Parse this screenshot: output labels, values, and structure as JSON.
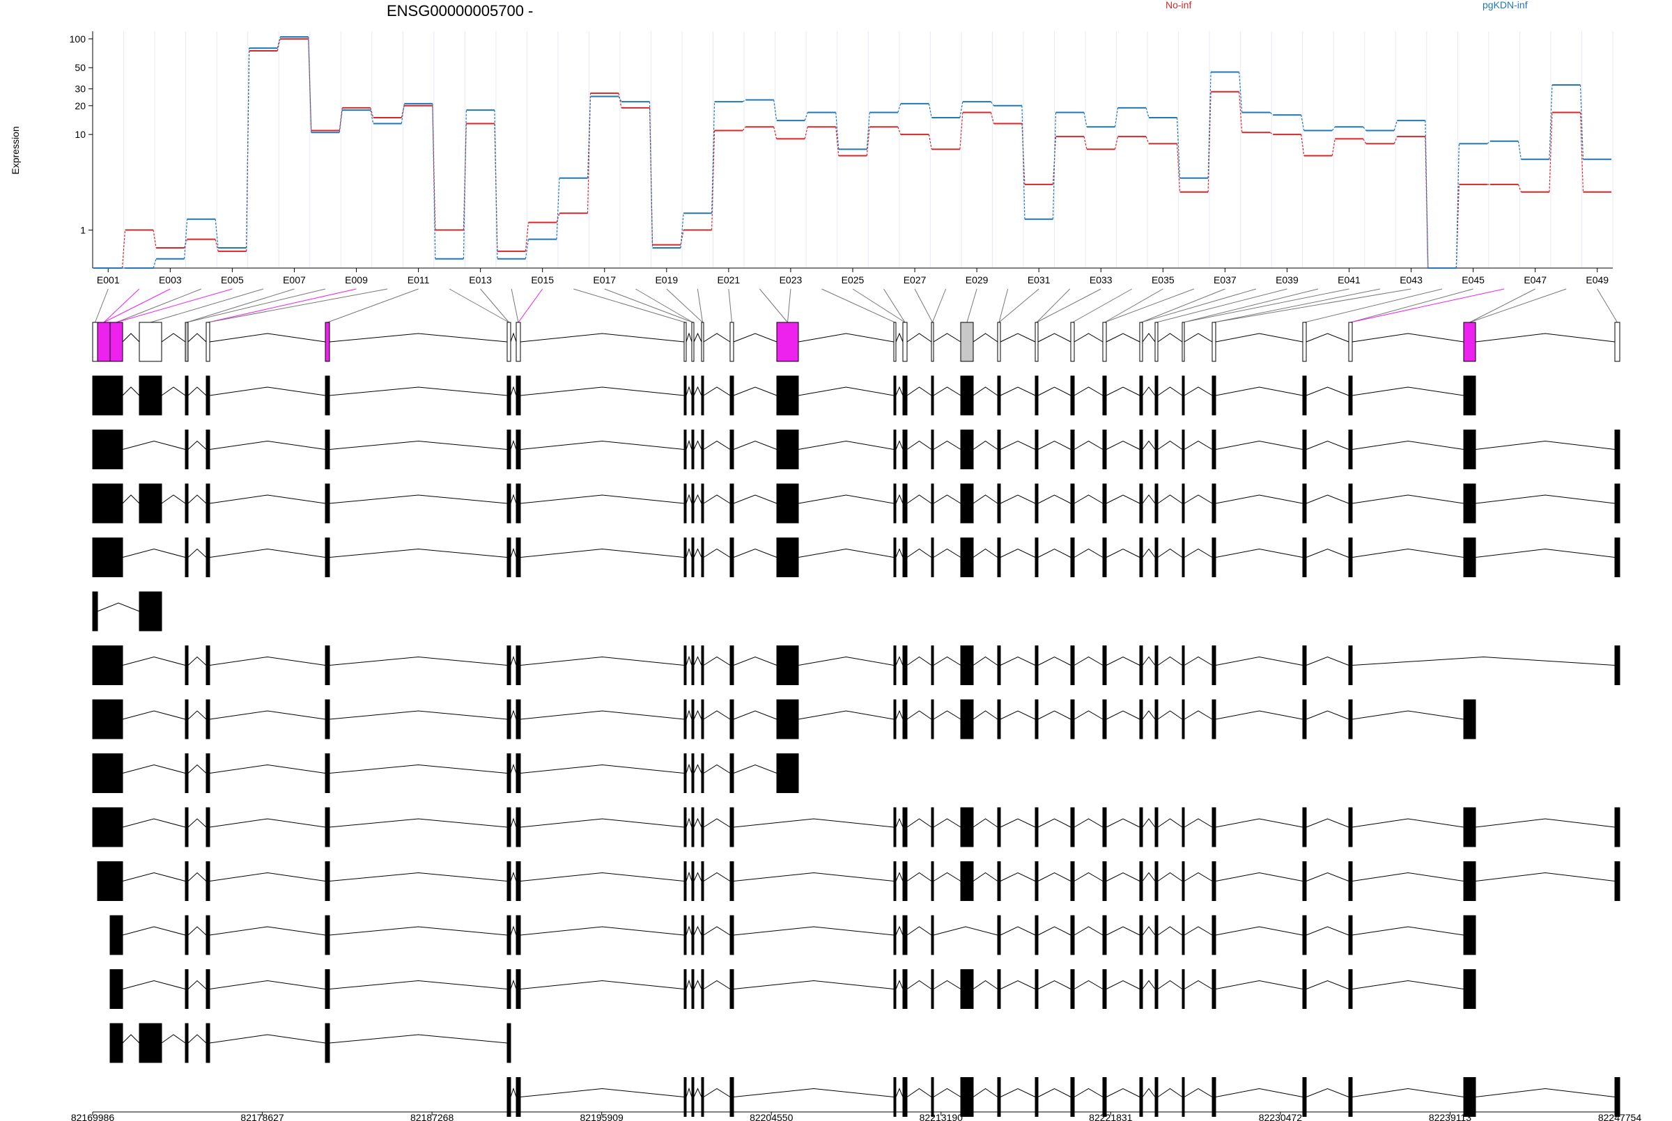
{
  "chart_data": {
    "type": "line",
    "title": "ENSG00000005700 -",
    "ylabel": "Expression",
    "yscale": "log",
    "yticks": [
      1,
      10,
      20,
      30,
      50,
      100
    ],
    "ylim": [
      0.4,
      120
    ],
    "grid": true,
    "legend_placement": "top-right",
    "colors": {
      "No-inf": "#d62728",
      "pgKDN-inf": "#1f77b4",
      "highlight": "#ee22ee",
      "other": "#c8c8c8"
    },
    "exon_labels": [
      "E001",
      "E003",
      "E005",
      "E007",
      "E009",
      "E011",
      "E013",
      "E015",
      "E017",
      "E019",
      "E021",
      "E023",
      "E025",
      "E027",
      "E029",
      "E031",
      "E033",
      "E035",
      "E037",
      "E039",
      "E041",
      "E043",
      "E045",
      "E047",
      "E049"
    ],
    "series": [
      {
        "name": "No-inf",
        "values": [
          0.4,
          1.0,
          0.65,
          0.8,
          0.6,
          75,
          100,
          11,
          19,
          15,
          20,
          1.0,
          13,
          0.6,
          1.2,
          1.5,
          27,
          19,
          0.7,
          1.0,
          11,
          12,
          9,
          12,
          6,
          12,
          10,
          7,
          17,
          13,
          3,
          9.5,
          7,
          9.5,
          8,
          2.5,
          28,
          10.5,
          10,
          6,
          9,
          8,
          9.5,
          0.4,
          3,
          3,
          2.5,
          17,
          2.5
        ]
      },
      {
        "name": "pgKDN-inf",
        "values": [
          0.4,
          0.4,
          0.5,
          1.3,
          0.65,
          80,
          105,
          10.5,
          18,
          13,
          21,
          0.5,
          18,
          0.5,
          0.8,
          3.5,
          25,
          22,
          0.65,
          1.5,
          22,
          23,
          14,
          17,
          7,
          17,
          21,
          15,
          22,
          20,
          1.3,
          17,
          12,
          19,
          15,
          3.5,
          45,
          17,
          16,
          11,
          12,
          11,
          14,
          0.4,
          8,
          8.5,
          5.5,
          33,
          5.5
        ]
      }
    ],
    "x_axis": {
      "tick_labels": [
        "82169986",
        "82178627",
        "82187268",
        "82195909",
        "82204550",
        "82213190",
        "82221831",
        "82230472",
        "82239113",
        "82247754"
      ],
      "range": [
        82169986,
        82247754
      ]
    }
  }
}
